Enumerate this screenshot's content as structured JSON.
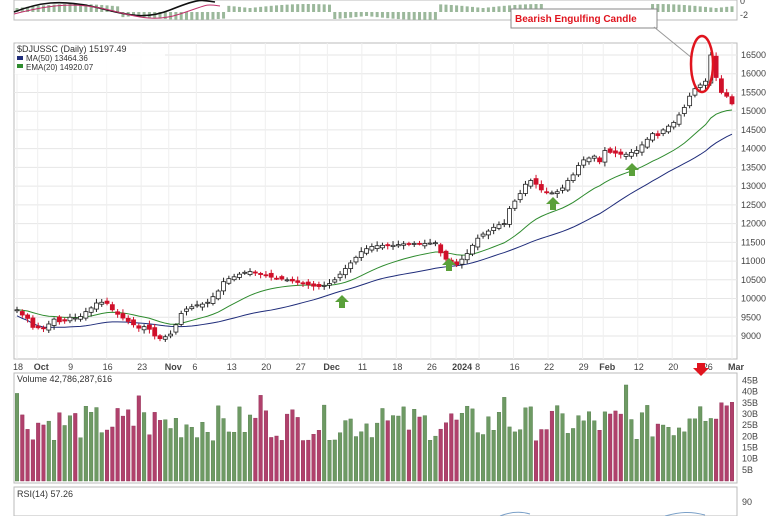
{
  "chart_data": {
    "type": "line",
    "title": "$DJUSSC (Daily) 15197.49",
    "legend": [
      {
        "name": "MA(50) 13464.36",
        "color": "#1f2c7a"
      },
      {
        "name": "EMA(20) 14920.07",
        "color": "#2e8b2e"
      }
    ],
    "annotation": "Bearish Engulfing Candle",
    "price_axis": [
      "16500",
      "16000",
      "15500",
      "15000",
      "14500",
      "14000",
      "13500",
      "13000",
      "12500",
      "12000",
      "11500",
      "11000",
      "10500",
      "10000",
      "9500",
      "9000"
    ],
    "x_labels": [
      "18",
      "Oct",
      "9",
      "16",
      "23",
      "Nov",
      "6",
      "13",
      "20",
      "27",
      "Dec",
      "11",
      "18",
      "26",
      "2024",
      "8",
      "16",
      "22",
      "29",
      "Feb",
      "12",
      "20",
      "26",
      "Mar"
    ],
    "x_label_positions": [
      0,
      9,
      24,
      39,
      54,
      66,
      78,
      93,
      108,
      123,
      135,
      150,
      165,
      180,
      191,
      201,
      216,
      231,
      246,
      255,
      270,
      285,
      300,
      311
    ],
    "n_days": 322,
    "closes": [
      9700,
      9560,
      9470,
      9230,
      9220,
      9200,
      9320,
      9450,
      9380,
      9400,
      9500,
      9480,
      9520,
      9650,
      9750,
      9880,
      9900,
      9870,
      9700,
      9580,
      9480,
      9390,
      9300,
      9210,
      9250,
      9180,
      9000,
      8930,
      8980,
      9050,
      9300,
      9600,
      9720,
      9780,
      9830,
      9850,
      9900,
      10050,
      10200,
      10450,
      10530,
      10580,
      10650,
      10700,
      10720,
      10680,
      10640,
      10620,
      10570,
      10540,
      10520,
      10500,
      10470,
      10430,
      10420,
      10370,
      10330,
      10320,
      10350,
      10400,
      10500,
      10650,
      10800,
      10950,
      11100,
      11250,
      11330,
      11390,
      11410,
      11420,
      11410,
      11420,
      11440,
      11460,
      11450,
      11470,
      11460,
      11470,
      11480,
      11490,
      11220,
      11050,
      10950,
      10900,
      11050,
      11200,
      11420,
      11610,
      11720,
      11800,
      11900,
      11970,
      12000,
      12400,
      12600,
      12800,
      13050,
      13150,
      13050,
      12900,
      12850,
      12820,
      12850,
      12950,
      13150,
      13300,
      13550,
      13700,
      13750,
      13800,
      13650,
      13950,
      13900,
      13880,
      13850,
      13850,
      13900,
      13950,
      14100,
      14250,
      14400,
      14350,
      14500,
      14600,
      14700,
      14900,
      15100,
      15400,
      15600,
      15700,
      15800,
      16500,
      15900,
      15500,
      15400,
      15197
    ],
    "volume": {
      "label": "Volume 42,786,287,616",
      "axis": [
        "45B",
        "40B",
        "35B",
        "30B",
        "25B",
        "20B",
        "15B",
        "10B",
        "5B"
      ]
    },
    "rsi": {
      "label": "RSI(14) 57.26",
      "axis": [
        "90"
      ]
    },
    "top_panel_axis": [
      "0",
      "-2"
    ]
  }
}
